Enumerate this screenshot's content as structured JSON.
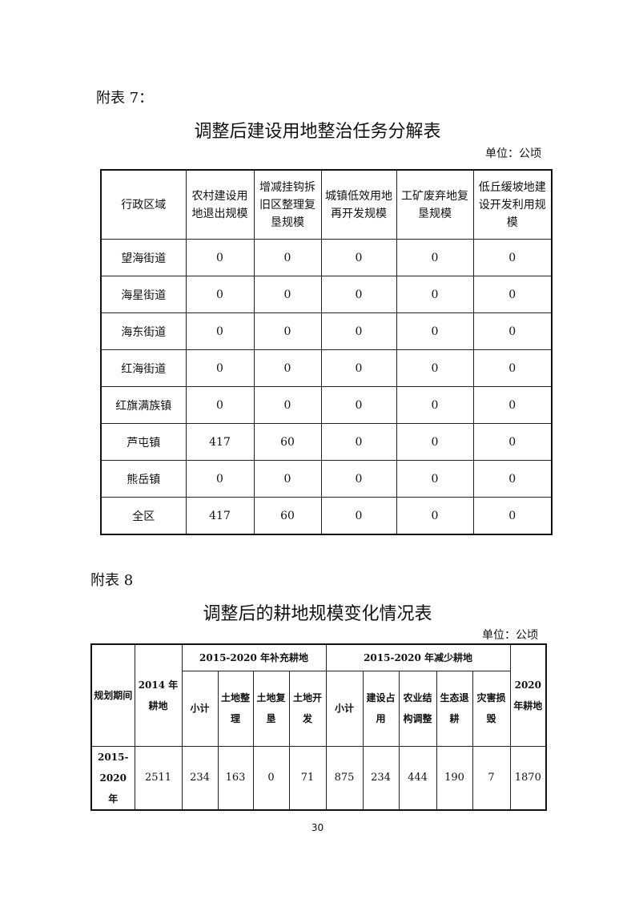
{
  "table7": {
    "label": "附表 7：",
    "title": "调整后建设用地整治任务分解表",
    "unit": "单位：公顷",
    "headers": [
      "行政区域",
      "农村建设用地退出规模",
      "增减挂钩拆旧区整理复垦规模",
      "城镇低效用地再开发规模",
      "工矿废弃地复垦规模",
      "低丘缓坡地建设开发利用规模"
    ],
    "rows": [
      [
        "望海街道",
        "0",
        "0",
        "0",
        "0",
        "0"
      ],
      [
        "海星街道",
        "0",
        "0",
        "0",
        "0",
        "0"
      ],
      [
        "海东街道",
        "0",
        "0",
        "0",
        "0",
        "0"
      ],
      [
        "红海街道",
        "0",
        "0",
        "0",
        "0",
        "0"
      ],
      [
        "红旗满族镇",
        "0",
        "0",
        "0",
        "0",
        "0"
      ],
      [
        "芦屯镇",
        "417",
        "60",
        "0",
        "0",
        "0"
      ],
      [
        "熊岳镇",
        "0",
        "0",
        "0",
        "0",
        "0"
      ],
      [
        "全区",
        "417",
        "60",
        "0",
        "0",
        "0"
      ]
    ]
  },
  "table8": {
    "label": "附表 8",
    "title": "调整后的耕地规模变化情况表",
    "unit": "单位：公顷",
    "h_period": "规划期间",
    "h_2014": "2014 年耕地",
    "h_add": "2015-2020 年补充耕地",
    "h_reduce": "2015-2020 年减少耕地",
    "h_2020": "2020 年耕地",
    "add_cols": [
      "小计",
      "土地整理",
      "土地复垦",
      "土地开发"
    ],
    "reduce_cols": [
      "小计",
      "建设占用",
      "农业结构调整",
      "生态退耕",
      "灾害损毁"
    ],
    "row": [
      "2015-2020 年",
      "2511",
      "234",
      "163",
      "0",
      "71",
      "875",
      "234",
      "444",
      "190",
      "7",
      "1870"
    ]
  },
  "page_number": "30"
}
